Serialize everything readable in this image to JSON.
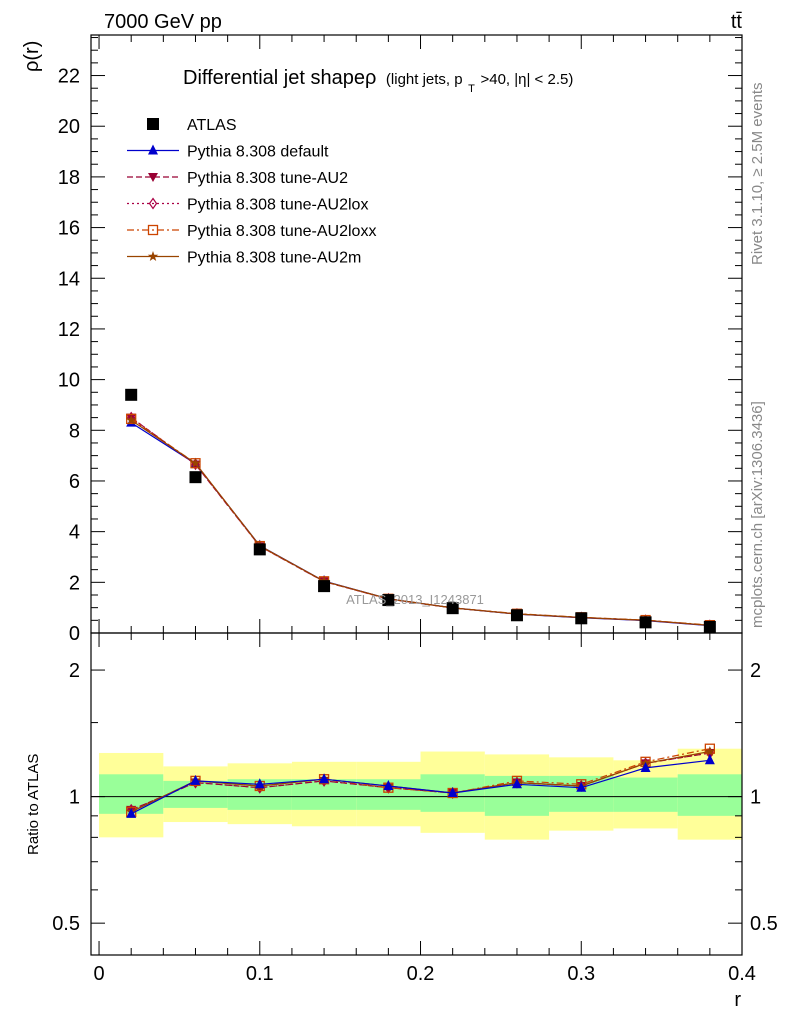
{
  "header": {
    "left": "7000 GeV pp",
    "right": "tt̄"
  },
  "side_text": {
    "rivet": "Rivet 3.1.10, ≥ 2.5M events",
    "mcplots": "mcplots.cern.ch [arXiv:1306.3436]"
  },
  "watermark": "ATLAS_2013_I1243871",
  "chart_data": [
    {
      "type": "line",
      "title": "Differential jet shapeρ (light jets, p_T>40, |η| < 2.5)",
      "title_main": "Differential jet shapeρ",
      "title_sub_a": "(light jets, p",
      "title_sub_sub": "T",
      "title_sub_b": ">40, |η| < 2.5)",
      "ylabel": "ρ(r)",
      "ylim": [
        0,
        23.6
      ],
      "yticks": [
        {
          "v": 0,
          "label": "0"
        },
        {
          "v": 2,
          "label": "2"
        },
        {
          "v": 4,
          "label": "4"
        },
        {
          "v": 6,
          "label": "6"
        },
        {
          "v": 8,
          "label": "8"
        },
        {
          "v": 10,
          "label": "10"
        },
        {
          "v": 12,
          "label": "12"
        },
        {
          "v": 14,
          "label": "14"
        },
        {
          "v": 16,
          "label": "16"
        },
        {
          "v": 18,
          "label": "18"
        },
        {
          "v": 20,
          "label": "20"
        },
        {
          "v": 22,
          "label": "22"
        }
      ],
      "x": [
        0.02,
        0.06,
        0.1,
        0.14,
        0.18,
        0.22,
        0.26,
        0.3,
        0.34,
        0.38
      ],
      "series": [
        {
          "name": "ATLAS",
          "color": "#000000",
          "marker": "square",
          "line": "none",
          "values": [
            9.4,
            6.15,
            3.3,
            1.85,
            1.3,
            0.98,
            0.7,
            0.58,
            0.42,
            0.24
          ]
        },
        {
          "name": "Pythia 8.308 default",
          "color": "#0000cc",
          "marker": "triangle-up",
          "line": "solid",
          "values": [
            8.3,
            6.68,
            3.45,
            2.05,
            1.35,
            0.99,
            0.74,
            0.6,
            0.49,
            0.29
          ]
        },
        {
          "name": "Pythia 8.308 tune-AU2",
          "color": "#990033",
          "marker": "triangle-down",
          "line": "dashed",
          "values": [
            8.5,
            6.65,
            3.42,
            2.03,
            1.34,
            0.99,
            0.75,
            0.61,
            0.5,
            0.3
          ]
        },
        {
          "name": "Pythia 8.308 tune-AU2lox",
          "color": "#aa0044",
          "marker": "diamond-open",
          "line": "dotted",
          "values": [
            8.5,
            6.66,
            3.42,
            2.03,
            1.34,
            0.99,
            0.75,
            0.61,
            0.5,
            0.3
          ]
        },
        {
          "name": "Pythia 8.308 tune-AU2loxx",
          "color": "#cc4400",
          "marker": "square-open",
          "line": "dashdot",
          "values": [
            8.45,
            6.7,
            3.43,
            2.04,
            1.35,
            0.99,
            0.76,
            0.62,
            0.51,
            0.31
          ]
        },
        {
          "name": "Pythia 8.308 tune-AU2m",
          "color": "#994400",
          "marker": "star",
          "line": "solid",
          "values": [
            8.4,
            6.7,
            3.44,
            2.04,
            1.35,
            0.99,
            0.75,
            0.61,
            0.5,
            0.3
          ]
        }
      ]
    },
    {
      "type": "line",
      "ylabel": "Ratio to ATLAS",
      "xlabel": "r",
      "xlim": [
        -0.005,
        0.4
      ],
      "ylim": [
        0.42,
        2.45
      ],
      "yscale": "log",
      "yticks": [
        {
          "v": 0.5,
          "label": "0.5"
        },
        {
          "v": 1,
          "label": "1"
        },
        {
          "v": 2,
          "label": "2"
        }
      ],
      "xticks": [
        {
          "v": 0,
          "label": "0"
        },
        {
          "v": 0.1,
          "label": "0.1"
        },
        {
          "v": 0.2,
          "label": "0.2"
        },
        {
          "v": 0.3,
          "label": "0.3"
        },
        {
          "v": 0.4,
          "label": "0.4"
        }
      ],
      "bands": {
        "outer_color": "#ffff99",
        "inner_color": "#99ff99",
        "bins": [
          {
            "lo": 0.0,
            "hi": 0.04,
            "y_lo": 0.8,
            "y_hi": 1.27,
            "g_lo": 0.91,
            "g_hi": 1.13
          },
          {
            "lo": 0.04,
            "hi": 0.08,
            "y_lo": 0.87,
            "y_hi": 1.18,
            "g_lo": 0.94,
            "g_hi": 1.09
          },
          {
            "lo": 0.08,
            "hi": 0.12,
            "y_lo": 0.86,
            "y_hi": 1.2,
            "g_lo": 0.93,
            "g_hi": 1.1
          },
          {
            "lo": 0.12,
            "hi": 0.16,
            "y_lo": 0.85,
            "y_hi": 1.21,
            "g_lo": 0.93,
            "g_hi": 1.1
          },
          {
            "lo": 0.16,
            "hi": 0.2,
            "y_lo": 0.85,
            "y_hi": 1.21,
            "g_lo": 0.93,
            "g_hi": 1.1
          },
          {
            "lo": 0.2,
            "hi": 0.24,
            "y_lo": 0.82,
            "y_hi": 1.28,
            "g_lo": 0.92,
            "g_hi": 1.13
          },
          {
            "lo": 0.24,
            "hi": 0.28,
            "y_lo": 0.79,
            "y_hi": 1.26,
            "g_lo": 0.9,
            "g_hi": 1.12
          },
          {
            "lo": 0.28,
            "hi": 0.32,
            "y_lo": 0.83,
            "y_hi": 1.24,
            "g_lo": 0.92,
            "g_hi": 1.12
          },
          {
            "lo": 0.32,
            "hi": 0.36,
            "y_lo": 0.84,
            "y_hi": 1.22,
            "g_lo": 0.92,
            "g_hi": 1.11
          },
          {
            "lo": 0.36,
            "hi": 0.4,
            "y_lo": 0.79,
            "y_hi": 1.3,
            "g_lo": 0.9,
            "g_hi": 1.13
          }
        ]
      },
      "x": [
        0.02,
        0.06,
        0.1,
        0.14,
        0.18,
        0.22,
        0.26,
        0.3,
        0.34,
        0.38
      ],
      "series": [
        {
          "name": "Pythia 8.308 default",
          "values": [
            0.91,
            1.09,
            1.07,
            1.1,
            1.06,
            1.02,
            1.07,
            1.05,
            1.17,
            1.22
          ]
        },
        {
          "name": "Pythia 8.308 tune-AU2",
          "values": [
            0.93,
            1.08,
            1.05,
            1.09,
            1.05,
            1.02,
            1.08,
            1.06,
            1.2,
            1.27
          ]
        },
        {
          "name": "Pythia 8.308 tune-AU2lox",
          "values": [
            0.93,
            1.08,
            1.05,
            1.09,
            1.05,
            1.02,
            1.08,
            1.06,
            1.2,
            1.27
          ]
        },
        {
          "name": "Pythia 8.308 tune-AU2loxx",
          "values": [
            0.92,
            1.09,
            1.06,
            1.1,
            1.05,
            1.02,
            1.09,
            1.07,
            1.21,
            1.3
          ]
        },
        {
          "name": "Pythia 8.308 tune-AU2m",
          "values": [
            0.92,
            1.09,
            1.06,
            1.1,
            1.06,
            1.02,
            1.08,
            1.06,
            1.2,
            1.28
          ]
        }
      ]
    }
  ]
}
